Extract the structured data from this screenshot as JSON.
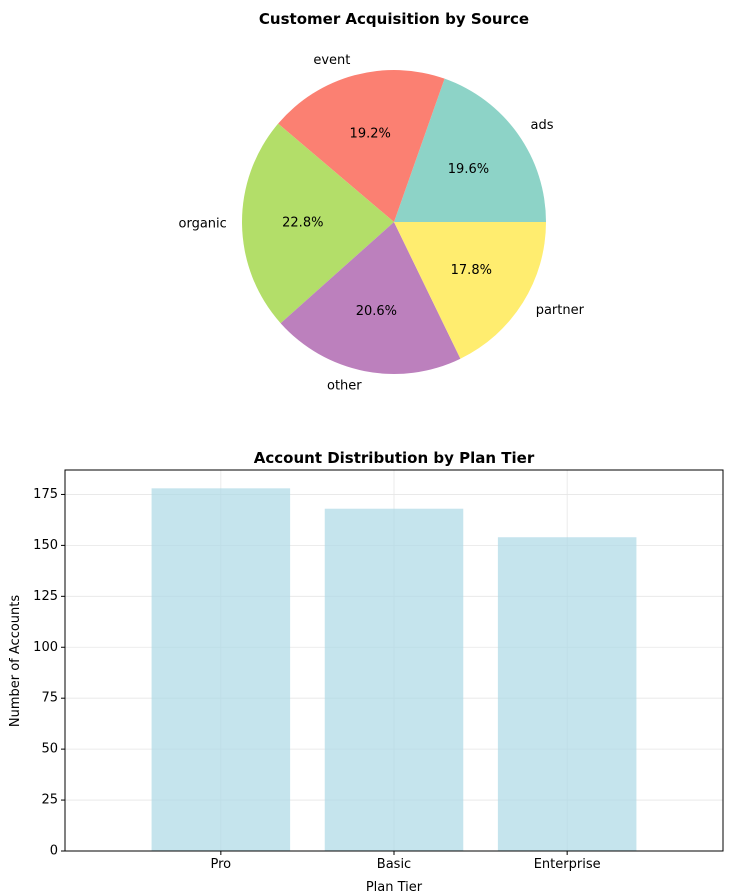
{
  "chart_data": [
    {
      "type": "pie",
      "title": "Customer Acquisition by Source",
      "categories": [
        "ads",
        "event",
        "organic",
        "other",
        "partner"
      ],
      "values": [
        19.6,
        19.2,
        22.8,
        20.6,
        17.8
      ],
      "value_labels": [
        "19.6%",
        "19.2%",
        "22.8%",
        "20.6%",
        "17.8%"
      ],
      "colors": [
        "#8dd3c7",
        "#fb8072",
        "#b3de69",
        "#bc80bd",
        "#ffed6f"
      ]
    },
    {
      "type": "bar",
      "title": "Account Distribution by Plan Tier",
      "categories": [
        "Pro",
        "Basic",
        "Enterprise"
      ],
      "values": [
        178,
        168,
        154
      ],
      "xlabel": "Plan Tier",
      "ylabel": "Number of Accounts",
      "ylim": [
        0,
        187
      ],
      "yticks": [
        0,
        25,
        50,
        75,
        100,
        125,
        150,
        175
      ],
      "grid": true,
      "bar_color": "#add8e6"
    }
  ]
}
